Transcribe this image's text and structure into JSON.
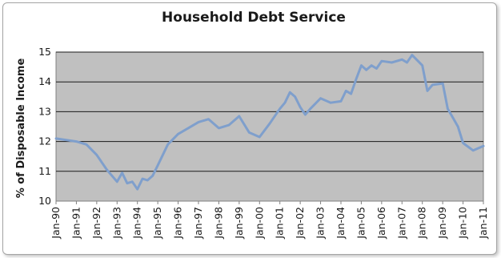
{
  "chart_data": {
    "type": "line",
    "title": "Household Debt Service",
    "ylabel": "% of Disposable Income",
    "xlabel": "",
    "ylim": [
      10,
      15
    ],
    "yticks": [
      10,
      11,
      12,
      13,
      14,
      15
    ],
    "grid": "horizontal",
    "legend": "none",
    "x_tick_labels": [
      "Jan-90",
      "Jan-91",
      "Jan-92",
      "Jan-93",
      "Jan-94",
      "Jan-95",
      "Jan-96",
      "Jan-97",
      "Jan-98",
      "Jan-99",
      "Jan-00",
      "Jan-01",
      "Jan-02",
      "Jan-03",
      "Jan-04",
      "Jan-05",
      "Jan-06",
      "Jan-07",
      "Jan-08",
      "Jan-09",
      "Jan-10",
      "Jan-11"
    ],
    "colors": {
      "line": "#7f9fcc",
      "plot_background": "#c0c0c0",
      "gridline": "#1a1a1a"
    },
    "series": [
      {
        "x": [
          "1990-01",
          "1990-07",
          "1991-01",
          "1991-07",
          "1992-01",
          "1992-07",
          "1993-01",
          "1993-04",
          "1993-07",
          "1993-10",
          "1994-01",
          "1994-04",
          "1994-07",
          "1994-10",
          "1995-01",
          "1995-07",
          "1996-01",
          "1996-07",
          "1997-01",
          "1997-07",
          "1998-01",
          "1998-07",
          "1999-01",
          "1999-07",
          "2000-01",
          "2000-07",
          "2001-01",
          "2001-04",
          "2001-07",
          "2001-10",
          "2002-01",
          "2002-04",
          "2002-07",
          "2003-01",
          "2003-07",
          "2004-01",
          "2004-04",
          "2004-07",
          "2004-10",
          "2005-01",
          "2005-04",
          "2005-07",
          "2005-10",
          "2006-01",
          "2006-07",
          "2007-01",
          "2007-04",
          "2007-07",
          "2008-01",
          "2008-04",
          "2008-07",
          "2009-01",
          "2009-04",
          "2009-07",
          "2009-10",
          "2010-01",
          "2010-07",
          "2011-01"
        ],
        "values": [
          12.1,
          12.05,
          12.0,
          11.9,
          11.55,
          11.05,
          10.65,
          10.95,
          10.6,
          10.65,
          10.4,
          10.75,
          10.7,
          10.85,
          11.2,
          11.9,
          12.25,
          12.45,
          12.65,
          12.75,
          12.45,
          12.55,
          12.85,
          12.3,
          12.15,
          12.6,
          13.1,
          13.3,
          13.65,
          13.5,
          13.15,
          12.9,
          13.1,
          13.45,
          13.3,
          13.35,
          13.7,
          13.6,
          14.1,
          14.55,
          14.4,
          14.55,
          14.45,
          14.7,
          14.65,
          14.75,
          14.65,
          14.9,
          14.55,
          13.7,
          13.9,
          13.95,
          13.1,
          12.8,
          12.5,
          11.95,
          11.7,
          11.85
        ]
      }
    ]
  }
}
